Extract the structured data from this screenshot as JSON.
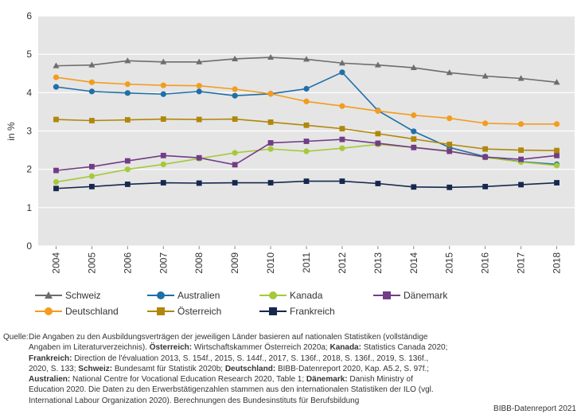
{
  "chart_data": {
    "type": "line",
    "ylabel": "in %",
    "ylim": [
      0,
      6
    ],
    "yticks": [
      "0",
      "1",
      "2",
      "3",
      "4",
      "5",
      "6"
    ],
    "categories": [
      "2004",
      "2005",
      "2006",
      "2007",
      "2008",
      "2009",
      "2010",
      "2011",
      "2012",
      "2013",
      "2014",
      "2015",
      "2016",
      "2017",
      "2018"
    ],
    "series": [
      {
        "name": "Schweiz",
        "color": "#6d6d6d",
        "marker": "triangle",
        "values": [
          4.7,
          4.72,
          4.83,
          4.8,
          4.8,
          4.88,
          4.92,
          4.87,
          4.77,
          4.72,
          4.65,
          4.52,
          4.43,
          4.37,
          4.27
        ]
      },
      {
        "name": "Australien",
        "color": "#1f6fa8",
        "marker": "circle",
        "values": [
          4.15,
          4.03,
          3.99,
          3.96,
          4.03,
          3.92,
          3.97,
          4.1,
          4.53,
          3.53,
          2.99,
          2.57,
          2.33,
          2.2,
          2.13
        ]
      },
      {
        "name": "Kanada",
        "color": "#a5c93a",
        "marker": "circle",
        "values": [
          1.67,
          1.82,
          2.0,
          2.13,
          2.28,
          2.43,
          2.53,
          2.47,
          2.55,
          2.65,
          2.57,
          2.48,
          2.31,
          2.19,
          2.1
        ]
      },
      {
        "name": "Dänemark",
        "color": "#733c86",
        "marker": "square",
        "values": [
          1.97,
          2.07,
          2.22,
          2.36,
          2.3,
          2.12,
          2.69,
          2.73,
          2.78,
          2.68,
          2.57,
          2.47,
          2.32,
          2.26,
          2.36
        ]
      },
      {
        "name": "Deutschland",
        "color": "#f39c1e",
        "marker": "circle",
        "values": [
          4.4,
          4.27,
          4.22,
          4.19,
          4.18,
          4.09,
          3.97,
          3.77,
          3.65,
          3.52,
          3.41,
          3.33,
          3.2,
          3.18,
          3.18
        ]
      },
      {
        "name": "Österreich",
        "color": "#b0870a",
        "marker": "square",
        "values": [
          3.3,
          3.27,
          3.29,
          3.31,
          3.3,
          3.31,
          3.23,
          3.15,
          3.06,
          2.93,
          2.79,
          2.65,
          2.53,
          2.5,
          2.49
        ]
      },
      {
        "name": "Frankreich",
        "color": "#16284d",
        "marker": "square",
        "values": [
          1.5,
          1.55,
          1.61,
          1.65,
          1.64,
          1.65,
          1.65,
          1.69,
          1.69,
          1.63,
          1.54,
          1.53,
          1.55,
          1.6,
          1.65
        ]
      }
    ]
  },
  "source": {
    "prefix": "Quelle:",
    "parts": [
      {
        "b": false,
        "t": "Die Angaben zu den Ausbildungsverträgen der jeweiligen Länder basieren auf nationalen Statistiken (vollständige Angaben im Literaturverzeichnis). "
      },
      {
        "b": true,
        "t": "Österreich:"
      },
      {
        "b": false,
        "t": " Wirtschaftskammer Österreich 2020a; "
      },
      {
        "b": true,
        "t": "Kanada:"
      },
      {
        "b": false,
        "t": " Statistics Canada 2020; "
      },
      {
        "b": true,
        "t": "Frankreich:"
      },
      {
        "b": false,
        "t": " Direction de l'évaluation 2013, S. 154f., 2015, S. 144f., 2017, S. 136f., 2018, S. 136f., 2019, S. 136f., 2020, S. 133; "
      },
      {
        "b": true,
        "t": "Schweiz:"
      },
      {
        "b": false,
        "t": " Bundesamt für Statistik 2020b; "
      },
      {
        "b": true,
        "t": "Deutschland:"
      },
      {
        "b": false,
        "t": " BIBB-Datenreport 2020, Kap. A5.2, S. 97f.; "
      },
      {
        "b": true,
        "t": "Australien:"
      },
      {
        "b": false,
        "t": " National Centre for Vocational Education Research 2020, Table 1; "
      },
      {
        "b": true,
        "t": "Dänemark:"
      },
      {
        "b": false,
        "t": " Danish Ministry of Education 2020. Die Daten zu den Erwerbstätigenzahlen stammen aus den internationalen Statistiken der ILO (vgl. International Labour Organization 2020). Berechnungen des Bundesinstituts für Berufsbildung"
      }
    ]
  },
  "credit": "BIBB-Datenreport 2021"
}
